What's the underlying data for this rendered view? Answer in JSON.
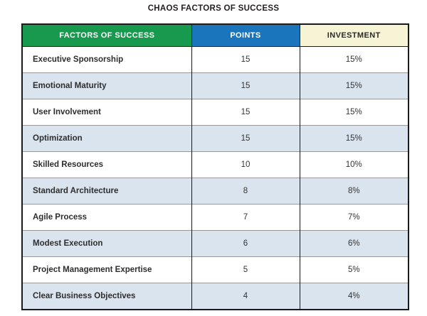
{
  "title": "CHAOS FACTORS OF SUCCESS",
  "chart_data": {
    "type": "table",
    "title": "CHAOS FACTORS OF SUCCESS",
    "columns": [
      "FACTORS OF SUCCESS",
      "POINTS",
      "INVESTMENT"
    ],
    "rows": [
      {
        "factor": "Executive Sponsorship",
        "points": 15,
        "investment": "15%"
      },
      {
        "factor": "Emotional Maturity",
        "points": 15,
        "investment": "15%"
      },
      {
        "factor": "User Involvement",
        "points": 15,
        "investment": "15%"
      },
      {
        "factor": "Optimization",
        "points": 15,
        "investment": "15%"
      },
      {
        "factor": "Skilled Resources",
        "points": 10,
        "investment": "10%"
      },
      {
        "factor": "Standard Architecture",
        "points": 8,
        "investment": "8%"
      },
      {
        "factor": "Agile Process",
        "points": 7,
        "investment": "7%"
      },
      {
        "factor": "Modest Execution",
        "points": 6,
        "investment": "6%"
      },
      {
        "factor": "Project Management Expertise",
        "points": 5,
        "investment": "5%"
      },
      {
        "factor": "Clear Business Objectives",
        "points": 4,
        "investment": "4%"
      }
    ]
  },
  "colors": {
    "header_factors_bg": "#189a4e",
    "header_points_bg": "#1b75bc",
    "header_investment_bg": "#f7f3d5",
    "header_light_text": "#ffffff",
    "header_dark_text": "#2b2b2b",
    "row_alt_bg": "#d9e4ee",
    "row_text": "#333333",
    "border_dark": "#1a1a1a",
    "border_row": "#999999"
  }
}
